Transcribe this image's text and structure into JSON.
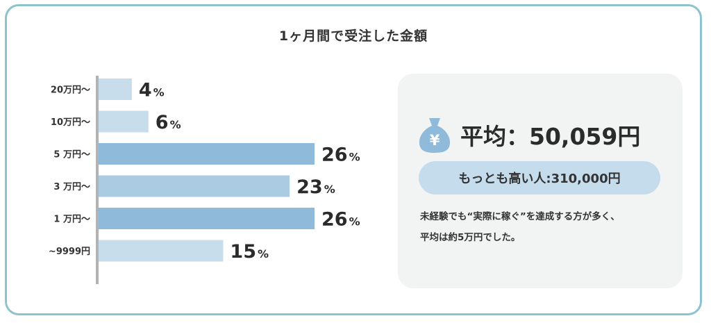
{
  "title": "1ヶ月間で受注した金額",
  "chart_data": {
    "type": "bar",
    "orientation": "horizontal",
    "categories": [
      "20万円〜",
      "10万円〜",
      "5 万円〜",
      "3 万円〜",
      "1 万円〜",
      "~9999円"
    ],
    "values": [
      4,
      6,
      26,
      23,
      26,
      15
    ],
    "value_unit": "%",
    "xlim": [
      0,
      26
    ],
    "grid": false,
    "bar_colors": [
      "#c7ddeb",
      "#c7ddeb",
      "#8fbad9",
      "#abcbe2",
      "#8fbad9",
      "#c7ddeb"
    ],
    "axis_color": "#b3b3b3"
  },
  "summary": {
    "icon": "money-bag-yen-icon",
    "icon_glyph": "¥",
    "icon_color": "#8fbad9",
    "average_label": "平均：50,059円",
    "max_label": "もっとも高い人:310,000円",
    "note_lines": [
      "未経験でも“実際に稼ぐ”を達成する方が多く、",
      "平均は約5万円でした。"
    ]
  }
}
